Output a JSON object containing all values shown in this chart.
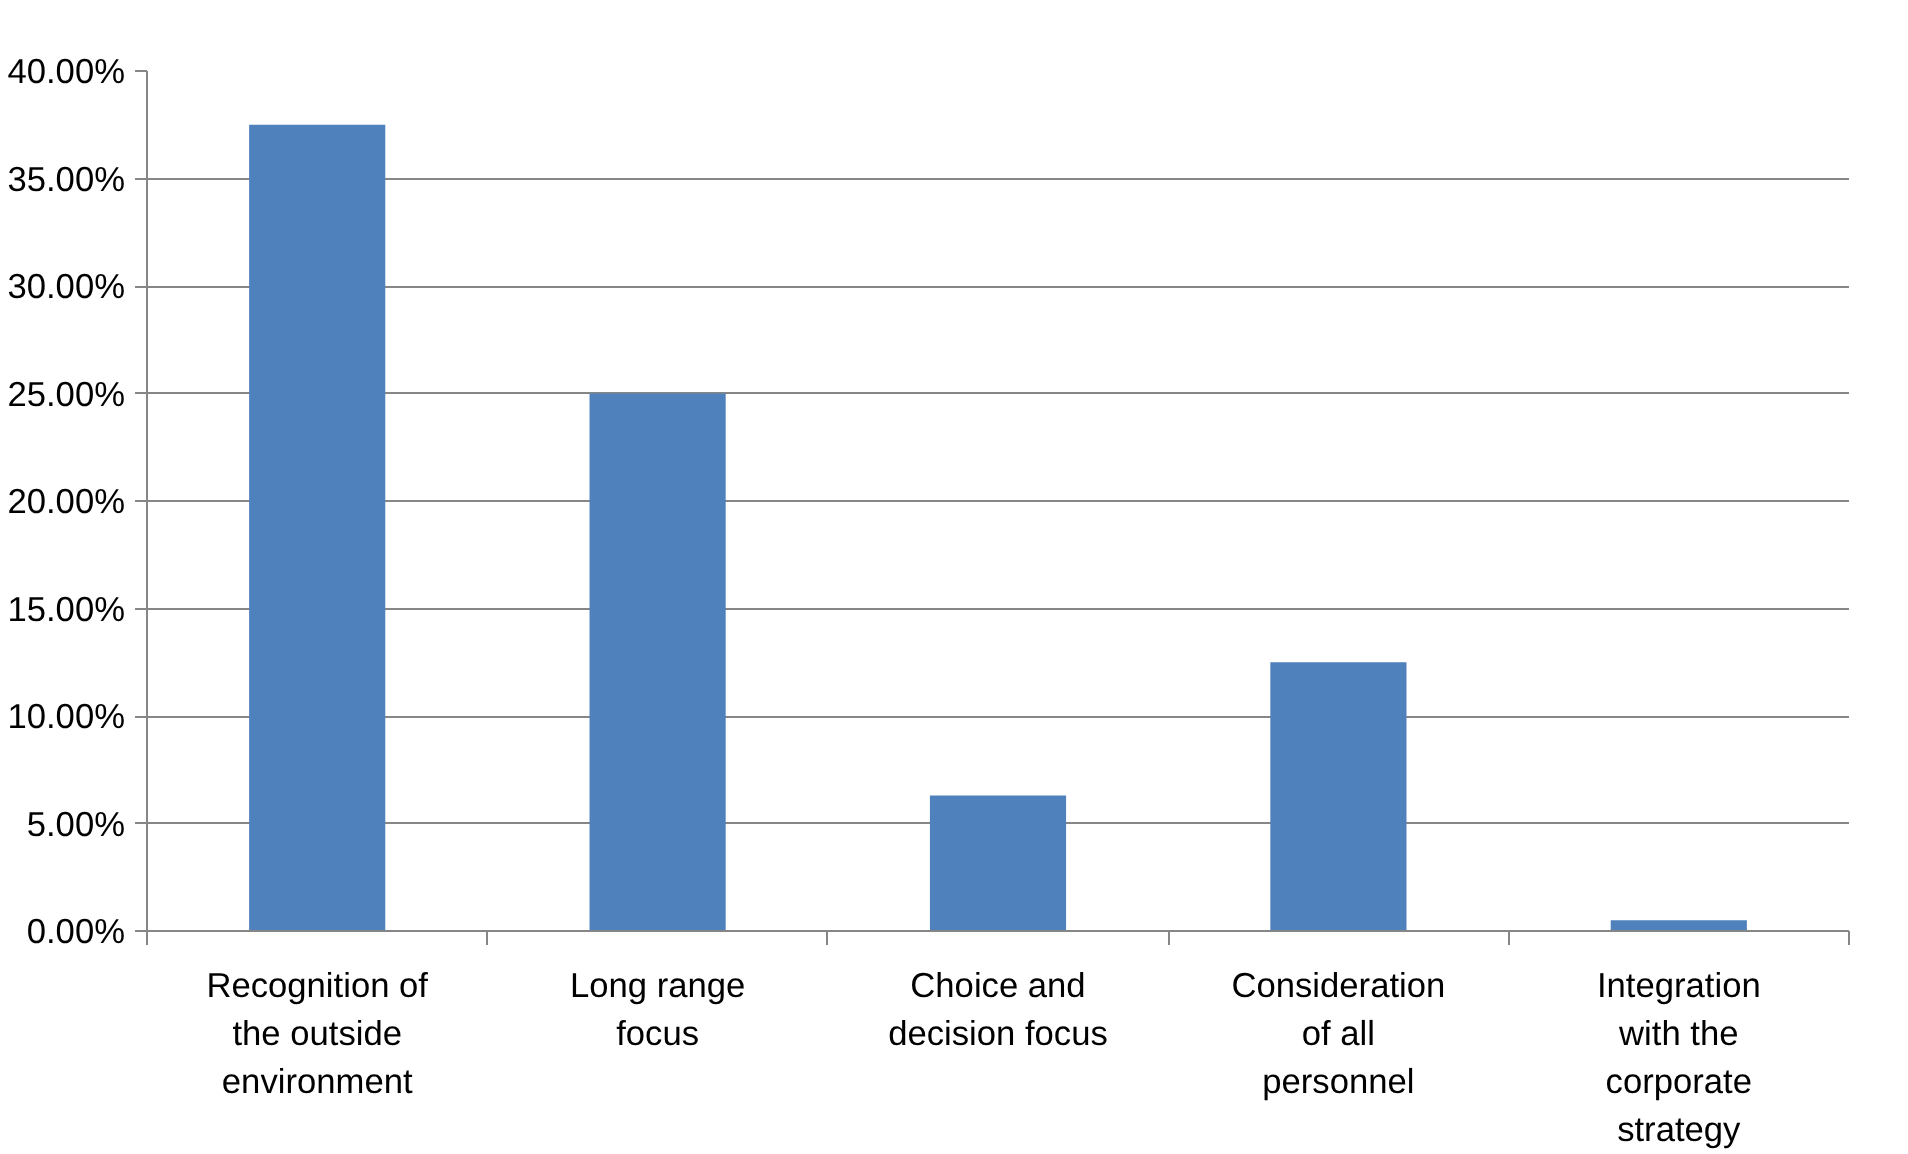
{
  "chart_data": {
    "type": "bar",
    "categories": [
      "Recognition of the outside environment",
      "Long range focus",
      "Choice and decision focus",
      "Consideration of all personnel",
      "Integration with the corporate strategy"
    ],
    "values": [
      37.5,
      25,
      6.3,
      12.5,
      0.5
    ],
    "color": "#4f81bd",
    "ylim": [
      0,
      40
    ],
    "yticks": [
      {
        "value": 0,
        "label": "0.00%"
      },
      {
        "value": 5,
        "label": "5.00%"
      },
      {
        "value": 10,
        "label": "10.00%"
      },
      {
        "value": 15,
        "label": "15.00%"
      },
      {
        "value": 20,
        "label": "20.00%"
      },
      {
        "value": 25,
        "label": "25.00%"
      },
      {
        "value": 30,
        "label": "30.00%"
      },
      {
        "value": 35,
        "label": "35.00%"
      },
      {
        "value": 40,
        "label": "40.00%"
      }
    ],
    "grid": "y"
  }
}
